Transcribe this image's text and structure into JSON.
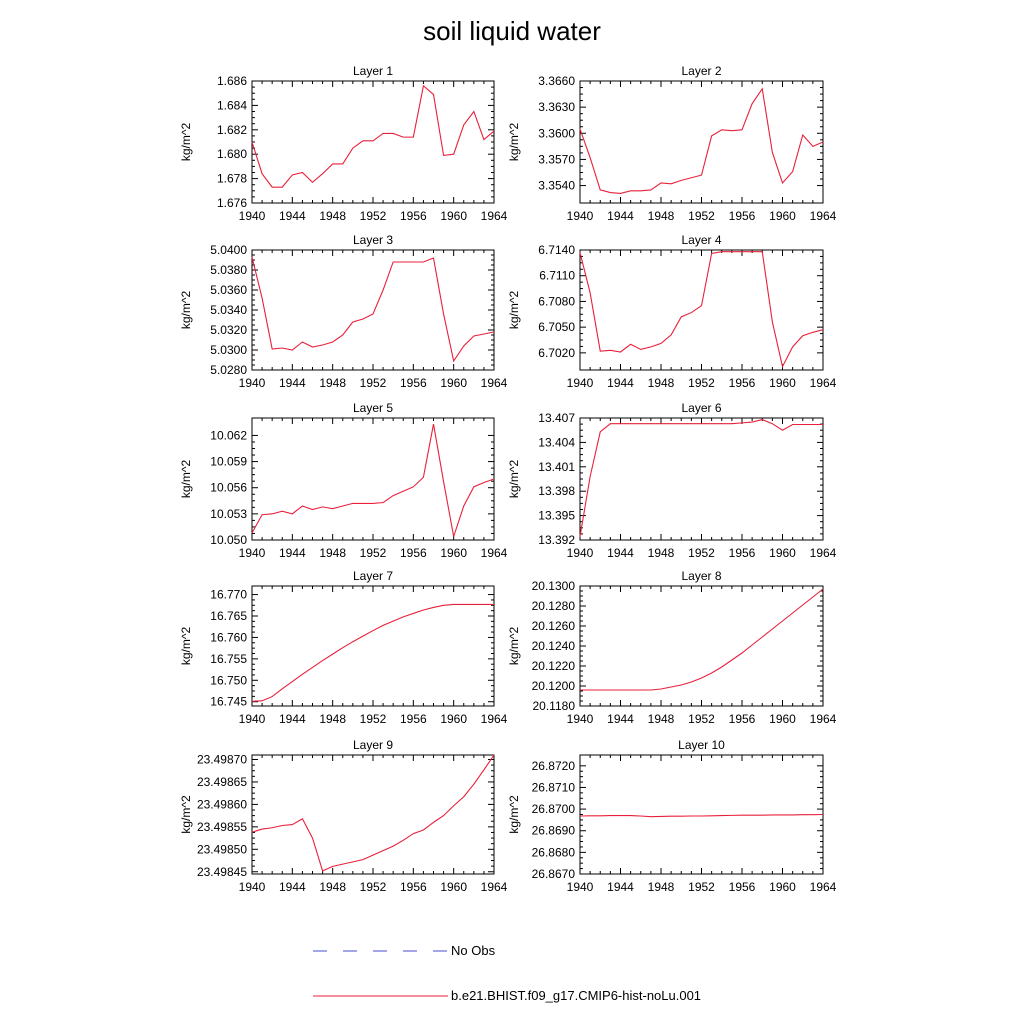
{
  "figure": {
    "title": "soil liquid water",
    "legend": [
      {
        "label": "No Obs",
        "color": "#4a4ad0",
        "dash": "dashed"
      },
      {
        "label": "b.e21.BHIST.f09_g17.CMIP6-hist-noLu.001",
        "color": "#e8203a",
        "dash": "solid"
      }
    ]
  },
  "chart_data": [
    {
      "type": "line",
      "title": "Layer 1",
      "ylabel": "kg/m^2",
      "xlim": [
        1940,
        1964
      ],
      "xticks": [
        "1940",
        "1944",
        "1948",
        "1952",
        "1956",
        "1960",
        "1964"
      ],
      "ylim": [
        1.676,
        1.686
      ],
      "yticks": [
        "1.676",
        "1.678",
        "1.680",
        "1.682",
        "1.684",
        "1.686"
      ],
      "x": [
        1940,
        1941,
        1942,
        1943,
        1944,
        1945,
        1946,
        1947,
        1948,
        1949,
        1950,
        1951,
        1952,
        1953,
        1954,
        1955,
        1956,
        1957,
        1958,
        1959,
        1960,
        1961,
        1962,
        1963,
        1964
      ],
      "series": [
        {
          "name": "b.e21.BHIST.f09_g17.CMIP6-hist-noLu.001",
          "color": "#e8203a",
          "values": [
            1.681,
            1.6784,
            1.6773,
            1.6773,
            1.6783,
            1.6785,
            1.6777,
            1.6784,
            1.6792,
            1.6792,
            1.6805,
            1.6811,
            1.6811,
            1.6817,
            1.6817,
            1.6814,
            1.6814,
            1.6856,
            1.6849,
            1.6799,
            1.68,
            1.6824,
            1.6835,
            1.6812,
            1.6819
          ]
        }
      ]
    },
    {
      "type": "line",
      "title": "Layer 2",
      "ylabel": "kg/m^2",
      "xlim": [
        1940,
        1964
      ],
      "xticks": [
        "1940",
        "1944",
        "1948",
        "1952",
        "1956",
        "1960",
        "1964"
      ],
      "ylim": [
        3.352,
        3.366
      ],
      "yticks": [
        "3.3540",
        "3.3570",
        "3.3600",
        "3.3630",
        "3.3660"
      ],
      "x": [
        1940,
        1941,
        1942,
        1943,
        1944,
        1945,
        1946,
        1947,
        1948,
        1949,
        1950,
        1951,
        1952,
        1953,
        1954,
        1955,
        1956,
        1957,
        1958,
        1959,
        1960,
        1961,
        1962,
        1963,
        1964
      ],
      "series": [
        {
          "name": "b.e21.BHIST.f09_g17.CMIP6-hist-noLu.001",
          "color": "#e8203a",
          "values": [
            3.3605,
            3.3572,
            3.3535,
            3.3532,
            3.3531,
            3.3534,
            3.3534,
            3.3535,
            3.3543,
            3.3542,
            3.3546,
            3.3549,
            3.3552,
            3.3597,
            3.3604,
            3.3603,
            3.3604,
            3.3634,
            3.3651,
            3.3578,
            3.3543,
            3.3556,
            3.3598,
            3.3585,
            3.359
          ]
        }
      ]
    },
    {
      "type": "line",
      "title": "Layer 3",
      "ylabel": "kg/m^2",
      "xlim": [
        1940,
        1964
      ],
      "xticks": [
        "1940",
        "1944",
        "1948",
        "1952",
        "1956",
        "1960",
        "1964"
      ],
      "ylim": [
        5.028,
        5.04
      ],
      "yticks": [
        "5.0280",
        "5.0300",
        "5.0320",
        "5.0340",
        "5.0360",
        "5.0380",
        "5.0400"
      ],
      "x": [
        1940,
        1941,
        1942,
        1943,
        1944,
        1945,
        1946,
        1947,
        1948,
        1949,
        1950,
        1951,
        1952,
        1953,
        1954,
        1955,
        1956,
        1957,
        1958,
        1959,
        1960,
        1961,
        1962,
        1963,
        1964
      ],
      "series": [
        {
          "name": "b.e21.BHIST.f09_g17.CMIP6-hist-noLu.001",
          "color": "#e8203a",
          "values": [
            5.0393,
            5.0352,
            5.0301,
            5.0302,
            5.03,
            5.0308,
            5.0303,
            5.0305,
            5.0308,
            5.0315,
            5.0328,
            5.0331,
            5.0336,
            5.036,
            5.0388,
            5.0388,
            5.0388,
            5.0388,
            5.0392,
            5.0336,
            5.0289,
            5.0304,
            5.0314,
            5.0316,
            5.0318
          ]
        }
      ]
    },
    {
      "type": "line",
      "title": "Layer 4",
      "ylabel": "kg/m^2",
      "xlim": [
        1940,
        1964
      ],
      "xticks": [
        "1940",
        "1944",
        "1948",
        "1952",
        "1956",
        "1960",
        "1964"
      ],
      "ylim": [
        6.7,
        6.714
      ],
      "yticks": [
        "6.7020",
        "6.7050",
        "6.7080",
        "6.7110",
        "6.7140"
      ],
      "x": [
        1940,
        1941,
        1942,
        1943,
        1944,
        1945,
        1946,
        1947,
        1948,
        1949,
        1950,
        1951,
        1952,
        1953,
        1954,
        1955,
        1956,
        1957,
        1958,
        1959,
        1960,
        1961,
        1962,
        1963,
        1964
      ],
      "series": [
        {
          "name": "b.e21.BHIST.f09_g17.CMIP6-hist-noLu.001",
          "color": "#e8203a",
          "values": [
            6.7137,
            6.709,
            6.7022,
            6.7023,
            6.7021,
            6.703,
            6.7024,
            6.7027,
            6.7031,
            6.7041,
            6.7062,
            6.7067,
            6.7075,
            6.7136,
            6.7138,
            6.7138,
            6.7138,
            6.7138,
            6.7138,
            6.7056,
            6.7004,
            6.7027,
            6.704,
            6.7044,
            6.7047
          ]
        }
      ]
    },
    {
      "type": "line",
      "title": "Layer 5",
      "ylabel": "kg/m^2",
      "xlim": [
        1940,
        1964
      ],
      "xticks": [
        "1940",
        "1944",
        "1948",
        "1952",
        "1956",
        "1960",
        "1964"
      ],
      "ylim": [
        10.05,
        10.064
      ],
      "yticks": [
        "10.050",
        "10.053",
        "10.056",
        "10.059",
        "10.062"
      ],
      "x": [
        1940,
        1941,
        1942,
        1943,
        1944,
        1945,
        1946,
        1947,
        1948,
        1949,
        1950,
        1951,
        1952,
        1953,
        1954,
        1955,
        1956,
        1957,
        1958,
        1959,
        1960,
        1961,
        1962,
        1963,
        1964
      ],
      "series": [
        {
          "name": "b.e21.BHIST.f09_g17.CMIP6-hist-noLu.001",
          "color": "#e8203a",
          "values": [
            10.0508,
            10.0529,
            10.053,
            10.0533,
            10.053,
            10.0539,
            10.0535,
            10.0538,
            10.0536,
            10.0539,
            10.0542,
            10.0542,
            10.0542,
            10.0543,
            10.0551,
            10.0556,
            10.0561,
            10.0572,
            10.0633,
            10.0567,
            10.0504,
            10.0539,
            10.0561,
            10.0566,
            10.057
          ]
        }
      ]
    },
    {
      "type": "line",
      "title": "Layer 6",
      "ylabel": "kg/m^2",
      "xlim": [
        1940,
        1964
      ],
      "xticks": [
        "1940",
        "1944",
        "1948",
        "1952",
        "1956",
        "1960",
        "1964"
      ],
      "ylim": [
        13.392,
        13.407
      ],
      "yticks": [
        "13.392",
        "13.395",
        "13.398",
        "13.401",
        "13.404",
        "13.407"
      ],
      "x": [
        1940,
        1941,
        1942,
        1943,
        1944,
        1945,
        1946,
        1947,
        1948,
        1949,
        1950,
        1951,
        1952,
        1953,
        1954,
        1955,
        1956,
        1957,
        1958,
        1959,
        1960,
        1961,
        1962,
        1963,
        1964
      ],
      "series": [
        {
          "name": "b.e21.BHIST.f09_g17.CMIP6-hist-noLu.001",
          "color": "#e8203a",
          "values": [
            13.3924,
            13.3998,
            13.4053,
            13.4063,
            13.4063,
            13.4063,
            13.4063,
            13.4063,
            13.4063,
            13.4063,
            13.4063,
            13.4063,
            13.4063,
            13.4063,
            13.4063,
            13.4063,
            13.4064,
            13.4065,
            13.4068,
            13.4063,
            13.4055,
            13.4062,
            13.4062,
            13.4062,
            13.4062
          ]
        }
      ]
    },
    {
      "type": "line",
      "title": "Layer 7",
      "ylabel": "kg/m^2",
      "xlim": [
        1940,
        1964
      ],
      "xticks": [
        "1940",
        "1944",
        "1948",
        "1952",
        "1956",
        "1960",
        "1964"
      ],
      "ylim": [
        16.744,
        16.772
      ],
      "yticks": [
        "16.745",
        "16.750",
        "16.755",
        "16.760",
        "16.765",
        "16.770"
      ],
      "x": [
        1940,
        1941,
        1942,
        1943,
        1944,
        1945,
        1946,
        1947,
        1948,
        1949,
        1950,
        1951,
        1952,
        1953,
        1954,
        1955,
        1956,
        1957,
        1958,
        1959,
        1960,
        1961,
        1962,
        1963,
        1964
      ],
      "series": [
        {
          "name": "b.e21.BHIST.f09_g17.CMIP6-hist-noLu.001",
          "color": "#e8203a",
          "values": [
            16.7451,
            16.7452,
            16.7462,
            16.748,
            16.7497,
            16.7514,
            16.753,
            16.7546,
            16.7561,
            16.7576,
            16.759,
            16.7603,
            16.7616,
            16.7628,
            16.7638,
            16.7648,
            16.7656,
            16.7664,
            16.767,
            16.7675,
            16.7677,
            16.7677,
            16.7677,
            16.7677,
            16.7677
          ]
        }
      ]
    },
    {
      "type": "line",
      "title": "Layer 8",
      "ylabel": "kg/m^2",
      "xlim": [
        1940,
        1964
      ],
      "xticks": [
        "1940",
        "1944",
        "1948",
        "1952",
        "1956",
        "1960",
        "1964"
      ],
      "ylim": [
        20.118,
        20.13
      ],
      "yticks": [
        "20.1180",
        "20.1200",
        "20.1220",
        "20.1240",
        "20.1260",
        "20.1280",
        "20.1300"
      ],
      "x": [
        1940,
        1941,
        1942,
        1943,
        1944,
        1945,
        1946,
        1947,
        1948,
        1949,
        1950,
        1951,
        1952,
        1953,
        1954,
        1955,
        1956,
        1957,
        1958,
        1959,
        1960,
        1961,
        1962,
        1963,
        1964
      ],
      "series": [
        {
          "name": "b.e21.BHIST.f09_g17.CMIP6-hist-noLu.001",
          "color": "#e8203a",
          "values": [
            20.1196,
            20.1196,
            20.1196,
            20.1196,
            20.1196,
            20.1196,
            20.1196,
            20.1196,
            20.1197,
            20.1199,
            20.1201,
            20.1204,
            20.1208,
            20.1213,
            20.1219,
            20.1226,
            20.1233,
            20.1241,
            20.1249,
            20.1257,
            20.1265,
            20.1273,
            20.1281,
            20.1289,
            20.1297
          ]
        }
      ]
    },
    {
      "type": "line",
      "title": "Layer 9",
      "ylabel": "kg/m^2",
      "xlim": [
        1940,
        1964
      ],
      "xticks": [
        "1940",
        "1944",
        "1948",
        "1952",
        "1956",
        "1960",
        "1964"
      ],
      "ylim": [
        23.498445,
        23.49871
      ],
      "yticks": [
        "23.49845",
        "23.49850",
        "23.49855",
        "23.49860",
        "23.49865",
        "23.49870"
      ],
      "x": [
        1940,
        1941,
        1942,
        1943,
        1944,
        1945,
        1946,
        1947,
        1948,
        1949,
        1950,
        1951,
        1952,
        1953,
        1954,
        1955,
        1956,
        1957,
        1958,
        1959,
        1960,
        1961,
        1962,
        1963,
        1964
      ],
      "series": [
        {
          "name": "b.e21.BHIST.f09_g17.CMIP6-hist-noLu.001",
          "color": "#e8203a",
          "values": [
            23.498538,
            23.498545,
            23.498548,
            23.498553,
            23.498555,
            23.498568,
            23.498525,
            23.498452,
            23.498462,
            23.498467,
            23.498472,
            23.498477,
            23.498487,
            23.498497,
            23.498507,
            23.49852,
            23.498535,
            23.498543,
            23.49856,
            23.498575,
            23.498597,
            23.498617,
            23.498645,
            23.498677,
            23.49871
          ]
        }
      ]
    },
    {
      "type": "line",
      "title": "Layer 10",
      "ylabel": "kg/m^2",
      "xlim": [
        1940,
        1964
      ],
      "xticks": [
        "1940",
        "1944",
        "1948",
        "1952",
        "1956",
        "1960",
        "1964"
      ],
      "ylim": [
        26.867,
        26.8725
      ],
      "yticks": [
        "26.8670",
        "26.8680",
        "26.8690",
        "26.8700",
        "26.8710",
        "26.8720"
      ],
      "x": [
        1940,
        1941,
        1942,
        1943,
        1944,
        1945,
        1946,
        1947,
        1948,
        1949,
        1950,
        1951,
        1952,
        1953,
        1954,
        1955,
        1956,
        1957,
        1958,
        1959,
        1960,
        1961,
        1962,
        1963,
        1964
      ],
      "series": [
        {
          "name": "b.e21.BHIST.f09_g17.CMIP6-hist-noLu.001",
          "color": "#e8203a",
          "values": [
            26.86968,
            26.86969,
            26.86969,
            26.8697,
            26.8697,
            26.8697,
            26.86968,
            26.86965,
            26.86966,
            26.86967,
            26.86967,
            26.86968,
            26.86968,
            26.86969,
            26.8697,
            26.86971,
            26.86972,
            26.86972,
            26.86972,
            26.86973,
            26.86973,
            26.86973,
            26.86974,
            26.86974,
            26.86975
          ]
        }
      ]
    }
  ]
}
